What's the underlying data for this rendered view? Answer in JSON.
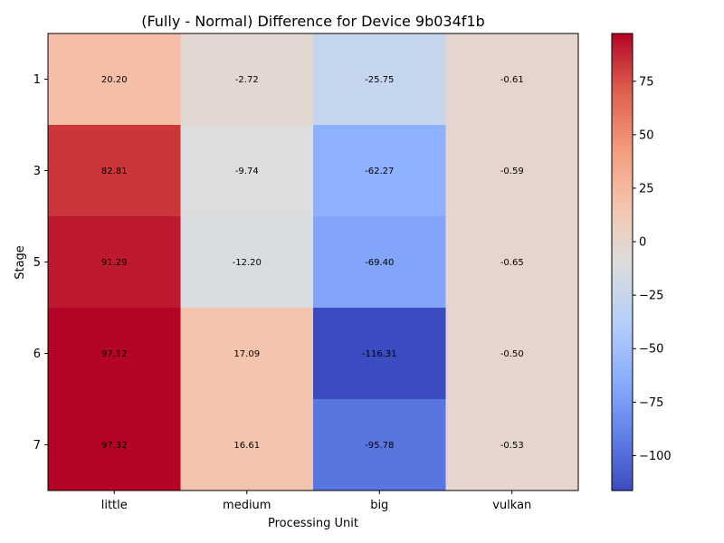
{
  "chart_data": {
    "type": "heatmap",
    "title": "(Fully - Normal) Difference for Device 9b034f1b",
    "xlabel": "Processing Unit",
    "ylabel": "Stage",
    "x_categories": [
      "little",
      "medium",
      "big",
      "vulkan"
    ],
    "y_categories": [
      "1",
      "3",
      "5",
      "6",
      "7"
    ],
    "values": [
      [
        20.2,
        -2.72,
        -25.75,
        -0.61
      ],
      [
        82.81,
        -9.74,
        -62.27,
        -0.59
      ],
      [
        91.29,
        -12.2,
        -69.4,
        -0.65
      ],
      [
        97.12,
        17.09,
        -116.31,
        -0.5
      ],
      [
        97.32,
        16.61,
        -95.78,
        -0.53
      ]
    ],
    "value_labels": [
      [
        "20.20",
        "-2.72",
        "-25.75",
        "-0.61"
      ],
      [
        "82.81",
        "-9.74",
        "-62.27",
        "-0.59"
      ],
      [
        "91.29",
        "-12.20",
        "-69.40",
        "-0.65"
      ],
      [
        "97.12",
        "17.09",
        "-116.31",
        "-0.50"
      ],
      [
        "97.32",
        "16.61",
        "-95.78",
        "-0.53"
      ]
    ],
    "colorbar": {
      "colormap": "coolwarm",
      "vmin": -116.31,
      "vcenter": 0,
      "vmax": 97.32,
      "ticks": [
        75,
        50,
        25,
        0,
        -25,
        -50,
        -75,
        -100
      ],
      "tick_labels": [
        "75",
        "50",
        "25",
        "0",
        "−25",
        "−50",
        "−75",
        "−100"
      ]
    }
  }
}
